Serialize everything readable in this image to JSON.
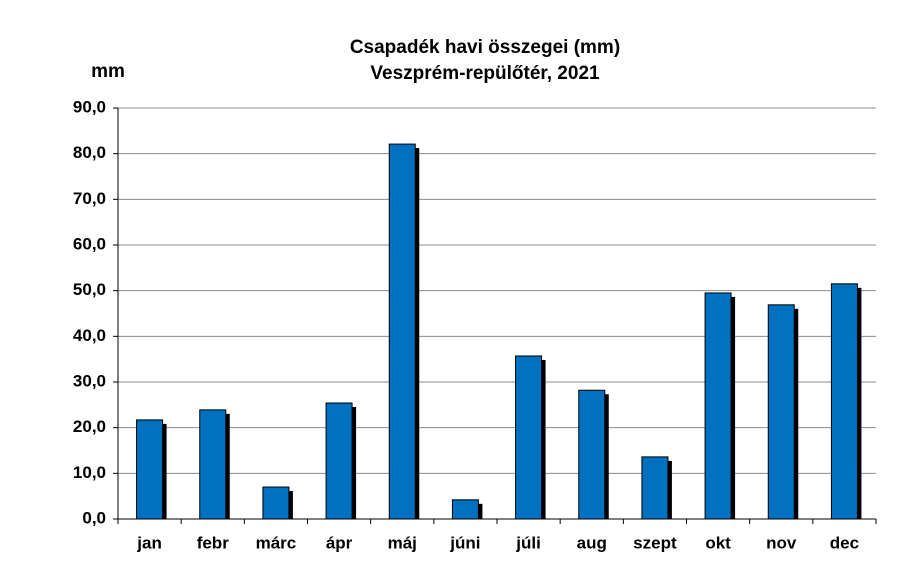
{
  "chart_data": {
    "type": "bar",
    "title": "Csapadék havi összegei (mm)",
    "subtitle": "Veszprém-repülőtér, 2021",
    "y_label": "mm",
    "categories": [
      "jan",
      "febr",
      "márc",
      "ápr",
      "máj",
      "júni",
      "júli",
      "aug",
      "szept",
      "okt",
      "nov",
      "dec"
    ],
    "values": [
      21.7,
      23.9,
      7.0,
      25.4,
      82.1,
      4.2,
      35.7,
      28.2,
      13.6,
      49.5,
      46.9,
      51.5
    ],
    "color": "#0070c0",
    "ylim": [
      0,
      90
    ],
    "yticks": [
      {
        "value": 0,
        "label": "0,0"
      },
      {
        "value": 10,
        "label": "10,0"
      },
      {
        "value": 20,
        "label": "20,0"
      },
      {
        "value": 30,
        "label": "30,0"
      },
      {
        "value": 40,
        "label": "40,0"
      },
      {
        "value": 50,
        "label": "50,0"
      },
      {
        "value": 60,
        "label": "60,0"
      },
      {
        "value": 70,
        "label": "70,0"
      },
      {
        "value": 80,
        "label": "80,0"
      },
      {
        "value": 90,
        "label": "90,0"
      }
    ],
    "grid": true
  }
}
